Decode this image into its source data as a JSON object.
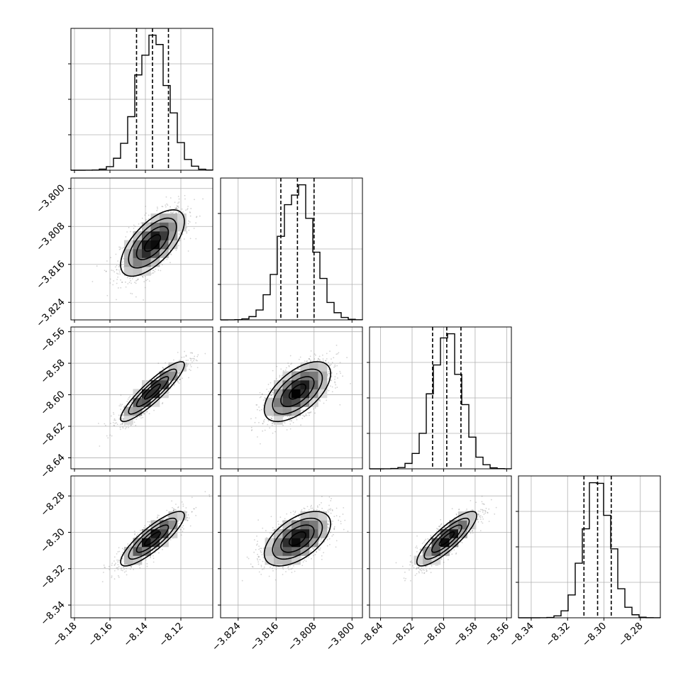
{
  "chart_data": {
    "type": "corner",
    "parameters": [
      {
        "mean": -8.136,
        "std": 0.009,
        "range": [
          -8.182,
          -8.102
        ],
        "ticks": [
          -8.18,
          -8.16,
          -8.14,
          -8.12
        ],
        "tick_labels": [
          "−8.18",
          "−8.16",
          "−8.14",
          "−8.12"
        ],
        "quantiles": [
          -8.145,
          -8.136,
          -8.127
        ]
      },
      {
        "mean": -3.8115,
        "std": 0.0035,
        "range": [
          -3.8277,
          -3.7978
        ],
        "ticks": [
          -3.824,
          -3.816,
          -3.808,
          -3.8
        ],
        "tick_labels": [
          "−3.824",
          "−3.816",
          "−3.808",
          "−3.800"
        ],
        "quantiles": [
          -3.815,
          -3.8115,
          -3.808
        ]
      },
      {
        "mean": -8.598,
        "std": 0.0095,
        "range": [
          -8.647,
          -8.557
        ],
        "ticks": [
          -8.64,
          -8.62,
          -8.6,
          -8.58,
          -8.56
        ],
        "tick_labels": [
          "−8.64",
          "−8.62",
          "−8.60",
          "−8.58",
          "−8.56"
        ],
        "quantiles": [
          -8.607,
          -8.598,
          -8.589
        ]
      },
      {
        "mean": -8.3035,
        "std": 0.0075,
        "range": [
          -8.347,
          -8.269
        ],
        "ticks": [
          -8.34,
          -8.32,
          -8.3,
          -8.28
        ],
        "tick_labels": [
          "−8.34",
          "−8.32",
          "−8.30",
          "−8.28"
        ],
        "quantiles": [
          -8.311,
          -8.3035,
          -8.296
        ]
      }
    ],
    "correlations": [
      [
        1.0,
        0.65,
        0.9,
        0.85
      ],
      [
        0.65,
        1.0,
        0.6,
        0.55
      ],
      [
        0.9,
        0.6,
        1.0,
        0.85
      ],
      [
        0.85,
        0.55,
        0.85,
        1.0
      ]
    ],
    "grid": true,
    "quantile_lines": "dashed",
    "contour_levels": [
      0.5,
      1.0,
      1.5,
      2.0
    ],
    "colors": {
      "line": "#000000",
      "grid": "#b0b0b0",
      "points": "#808080"
    }
  }
}
